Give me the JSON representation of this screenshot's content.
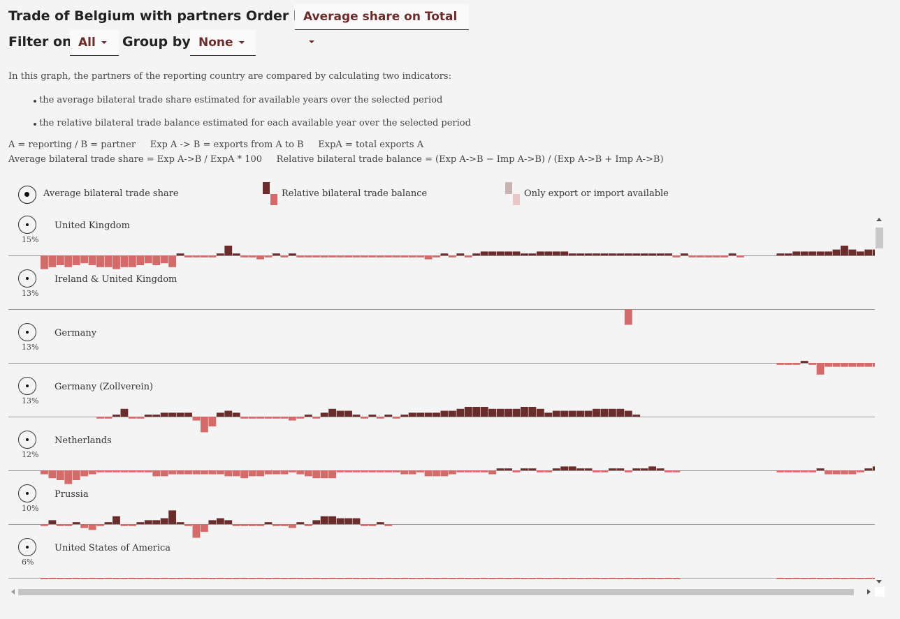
{
  "header": {
    "title": "Trade of Belgium with partners Order by",
    "order_value": "Average share on Total",
    "filter_label": "Filter on",
    "filter_value": "All",
    "group_label": "Group by",
    "group_value": "None"
  },
  "description": {
    "intro": "In this graph, the partners of the reporting country are compared by calculating two indicators:",
    "bullet1": "the average bilateral trade share estimated for available years over the selected period",
    "bullet2": "the relative bilateral trade balance estimated for each available year over the selected period",
    "definitions1": "A = reporting / B = partner     Exp A -> B = exports from A to B     ExpA = total exports A",
    "definitions2": "Average bilateral trade share = Exp A->B / ExpA * 100     Relative bilateral trade balance = (Exp A->B − Imp A->B) / (Exp A->B + Imp A->B)"
  },
  "legend": {
    "share": "Average bilateral trade share",
    "balance": "Relative bilateral trade balance",
    "partial": "Only export or import available"
  },
  "colors": {
    "positive": "#6b2c2c",
    "negative": "#d46a6a",
    "partial_pos": "#c8b3b3",
    "partial_neg": "#ebc6c6",
    "axis": "#999999"
  },
  "chart_data": {
    "type": "bar",
    "description": "Small-multiple bars of relative bilateral trade balance per year (range -1..1), one row per partner",
    "partners": [
      {
        "name": "United Kingdom",
        "share": "15%",
        "segments": [
          {
            "start": 0,
            "values": [
              -0.35,
              -0.3,
              -0.25,
              -0.3,
              -0.25,
              -0.2,
              -0.25,
              -0.3,
              -0.3,
              -0.35,
              -0.3,
              -0.3,
              -0.25,
              -0.2,
              -0.25,
              -0.2,
              -0.3,
              0.05,
              -0.05,
              -0.05,
              -0.05,
              -0.05,
              0.05,
              0.25,
              0.05,
              -0.05,
              -0.05,
              -0.1,
              -0.05,
              0.05,
              -0.05,
              0.05,
              -0.05,
              -0.05,
              -0.05,
              -0.05,
              -0.05,
              -0.05,
              -0.05,
              -0.05,
              -0.05,
              -0.05,
              -0.05,
              -0.05,
              -0.05,
              -0.05,
              -0.05,
              -0.05,
              -0.1,
              -0.05,
              0.05,
              -0.05,
              0.05,
              -0.05,
              0.05,
              0.1,
              0.1,
              0.1,
              0.1,
              0.1,
              0.05,
              0.05,
              0.1,
              0.1,
              0.1,
              0.1,
              0.05,
              0.05,
              0.05,
              0.05,
              0.05,
              0.05,
              0.05,
              0.05,
              0.05,
              0.05,
              0.05,
              0.05,
              0.05,
              -0.05,
              0.05,
              -0.05,
              -0.05,
              -0.05,
              -0.05,
              -0.05,
              0.05,
              -0.05
            ]
          },
          {
            "start": 92,
            "values": [
              0.05,
              0.05,
              0.1,
              0.1,
              0.1,
              0.1,
              0.1,
              0.15,
              0.25,
              0.15,
              0.1,
              0.15,
              0.15,
              0.1
            ]
          }
        ]
      },
      {
        "name": "Ireland & United Kingdom",
        "share": "13%",
        "segments": [
          {
            "start": 73,
            "values": [
              -0.4
            ]
          }
        ]
      },
      {
        "name": "Germany",
        "share": "13%",
        "segments": [
          {
            "start": 92,
            "values": [
              -0.05,
              -0.05,
              -0.05,
              0.05,
              -0.05,
              -0.3,
              -0.1,
              -0.1,
              -0.1,
              -0.1,
              -0.1,
              -0.1,
              -0.1,
              -0.1
            ]
          }
        ]
      },
      {
        "name": "Germany (Zollverein)",
        "share": "13%",
        "segments": [
          {
            "start": 7,
            "values": [
              -0.05,
              -0.05,
              0.05,
              0.2,
              -0.05,
              -0.05,
              0.05,
              0.05,
              0.1,
              0.1,
              0.1,
              0.1,
              -0.1,
              -0.4,
              -0.25,
              0.1,
              0.15,
              0.1,
              -0.05,
              -0.05,
              -0.05,
              -0.05,
              -0.05,
              -0.05,
              -0.1,
              -0.05,
              0.05,
              -0.05,
              0.1,
              0.2,
              0.15,
              0.15,
              0.05,
              -0.05,
              0.05,
              -0.05,
              0.05,
              -0.05,
              0.05,
              0.1,
              0.1,
              0.1,
              0.1,
              0.15,
              0.15,
              0.2,
              0.25,
              0.25,
              0.25,
              0.2,
              0.2,
              0.2,
              0.2,
              0.25,
              0.25,
              0.2,
              0.1,
              0.15,
              0.15,
              0.15,
              0.15,
              0.15,
              0.2,
              0.2,
              0.2,
              0.2,
              0.15,
              0.05
            ]
          }
        ]
      },
      {
        "name": "Netherlands",
        "share": "12%",
        "segments": [
          {
            "start": 0,
            "values": [
              -0.1,
              -0.2,
              -0.25,
              -0.35,
              -0.25,
              -0.15,
              -0.1,
              -0.05,
              -0.05,
              -0.05,
              -0.05,
              -0.05,
              -0.05,
              -0.05,
              -0.15,
              -0.15,
              -0.1,
              -0.1,
              -0.1,
              -0.1,
              -0.1,
              -0.1,
              -0.1,
              -0.15,
              -0.15,
              -0.2,
              -0.15,
              -0.15,
              -0.1,
              -0.1,
              -0.1,
              -0.05,
              -0.1,
              -0.15,
              -0.2,
              -0.2,
              -0.2,
              -0.05,
              -0.05,
              -0.05,
              -0.05,
              -0.05,
              -0.05,
              -0.05,
              -0.05,
              -0.1,
              -0.1,
              -0.05,
              -0.15,
              -0.15,
              -0.15,
              -0.1,
              -0.05,
              -0.05,
              -0.05,
              -0.05,
              -0.1,
              0.05,
              0.05,
              -0.05,
              0.05,
              0.05,
              -0.05,
              -0.05,
              0.05,
              0.1,
              0.1,
              0.05,
              0.05,
              -0.05,
              -0.05,
              0.05,
              0.05,
              -0.05,
              0.05,
              0.05,
              0.1,
              0.05,
              -0.05,
              -0.05
            ]
          },
          {
            "start": 92,
            "values": [
              -0.05,
              -0.05,
              -0.05,
              -0.05,
              -0.05,
              0.05,
              -0.1,
              -0.1,
              -0.1,
              -0.1,
              -0.05,
              0.05,
              0.1,
              0.1,
              0.1
            ]
          }
        ]
      },
      {
        "name": "Prussia",
        "share": "10%",
        "segments": [
          {
            "start": 0,
            "values": [
              -0.05,
              0.1,
              -0.05,
              -0.05,
              0.05,
              -0.1,
              -0.15,
              -0.05,
              0.05,
              0.2,
              -0.05,
              -0.05,
              0.05,
              0.1,
              0.1,
              0.15,
              0.35,
              0.05,
              -0.05,
              -0.35,
              -0.2,
              0.1,
              0.15,
              0.1,
              -0.05,
              -0.05,
              -0.05,
              -0.05,
              0.05,
              -0.05,
              -0.05,
              -0.1,
              0.05,
              -0.05,
              0.1,
              0.2,
              0.2,
              0.15,
              0.15,
              0.15,
              -0.05,
              -0.05,
              0.05,
              -0.05
            ]
          }
        ]
      },
      {
        "name": "United States of America",
        "share": "6%",
        "segments": [
          {
            "start": 0,
            "values": [
              -0.2,
              -0.2,
              -0.2,
              -0.2,
              -0.2,
              -0.15,
              -0.2,
              -0.15,
              -0.15,
              -0.2,
              -0.2,
              -0.15,
              -0.2,
              -0.2,
              -0.15,
              -0.1,
              -0.15,
              -0.2,
              -0.15,
              -0.1,
              -0.2,
              -0.1,
              -0.05,
              -0.15,
              -0.15,
              -0.1,
              -0.1,
              -0.15,
              -0.2,
              -0.15,
              -0.15,
              -0.15,
              -0.15,
              -0.15,
              -0.15,
              -0.15,
              -0.15,
              -0.15,
              -0.15,
              -0.15,
              -0.15,
              -0.15,
              -0.15,
              -0.15,
              -0.15,
              -0.15,
              -0.15,
              -0.15,
              -0.15,
              -0.15,
              -0.15,
              -0.15,
              -0.15,
              -0.15,
              -0.15,
              -0.15,
              -0.15,
              -0.15,
              -0.15,
              -0.15,
              -0.15,
              -0.15,
              -0.15,
              -0.15,
              -0.15,
              -0.15,
              -0.15,
              -0.15,
              -0.15,
              -0.15,
              -0.15,
              -0.15,
              -0.15,
              -0.15,
              -0.15,
              -0.15,
              -0.15,
              -0.15,
              -0.15,
              -0.15
            ]
          },
          {
            "start": 92,
            "values": [
              -0.1,
              -0.1,
              -0.05,
              -0.05,
              -0.1,
              -0.1,
              -0.15,
              -0.1,
              -0.1,
              -0.1,
              -0.1,
              -0.05,
              -0.05,
              -0.05,
              0.05
            ]
          }
        ]
      }
    ]
  }
}
